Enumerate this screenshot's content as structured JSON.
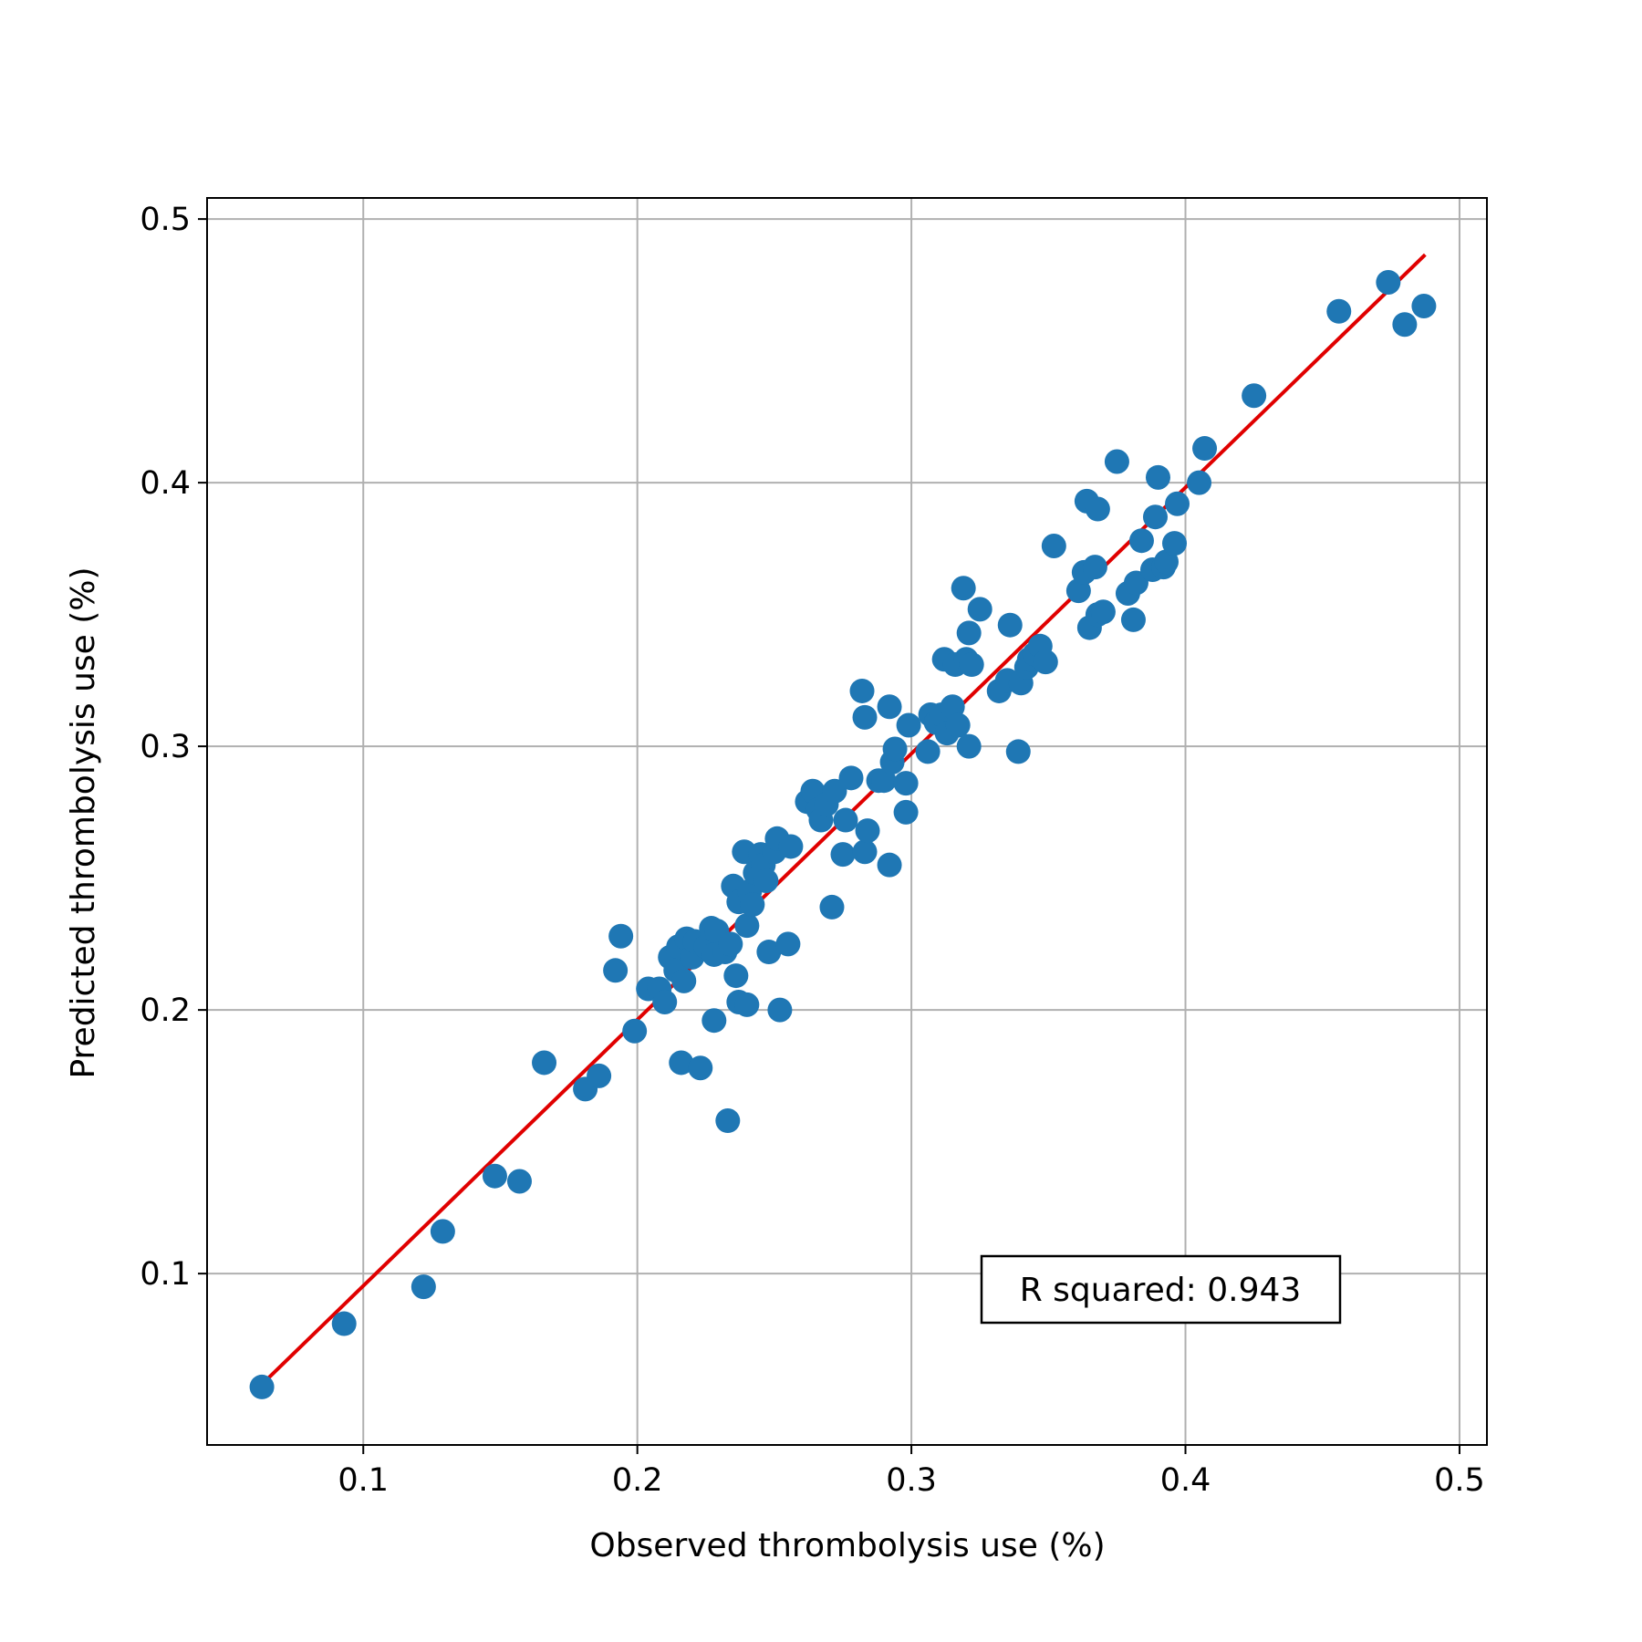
{
  "colors": {
    "points": "#1f77b4",
    "fit_line": "#e00000",
    "grid": "#b0b0b0",
    "axes": "#000000"
  },
  "chart_data": {
    "type": "scatter",
    "title": "",
    "xlabel": "Observed thrombolysis use (%)",
    "ylabel": "Predicted thrombolysis use (%)",
    "xlim": [
      0.043,
      0.51
    ],
    "ylim": [
      0.035,
      0.508
    ],
    "xticks": [
      0.1,
      0.2,
      0.3,
      0.4,
      0.5
    ],
    "yticks": [
      0.1,
      0.2,
      0.3,
      0.4,
      0.5
    ],
    "xtick_labels": [
      "0.1",
      "0.2",
      "0.3",
      "0.4",
      "0.5"
    ],
    "ytick_labels": [
      "0.1",
      "0.2",
      "0.3",
      "0.4",
      "0.5"
    ],
    "grid": true,
    "annotation": "R squared: 0.943",
    "fit_line": {
      "x": [
        0.063,
        0.487
      ],
      "y": [
        0.058,
        0.486
      ]
    },
    "points": [
      [
        0.063,
        0.057
      ],
      [
        0.093,
        0.081
      ],
      [
        0.122,
        0.095
      ],
      [
        0.129,
        0.116
      ],
      [
        0.148,
        0.137
      ],
      [
        0.157,
        0.135
      ],
      [
        0.166,
        0.18
      ],
      [
        0.181,
        0.17
      ],
      [
        0.186,
        0.175
      ],
      [
        0.192,
        0.215
      ],
      [
        0.194,
        0.228
      ],
      [
        0.199,
        0.192
      ],
      [
        0.204,
        0.208
      ],
      [
        0.208,
        0.208
      ],
      [
        0.21,
        0.203
      ],
      [
        0.212,
        0.22
      ],
      [
        0.214,
        0.215
      ],
      [
        0.215,
        0.224
      ],
      [
        0.216,
        0.18
      ],
      [
        0.217,
        0.211
      ],
      [
        0.218,
        0.227
      ],
      [
        0.22,
        0.22
      ],
      [
        0.221,
        0.226
      ],
      [
        0.223,
        0.178
      ],
      [
        0.225,
        0.224
      ],
      [
        0.227,
        0.231
      ],
      [
        0.228,
        0.221
      ],
      [
        0.228,
        0.196
      ],
      [
        0.229,
        0.23
      ],
      [
        0.232,
        0.222
      ],
      [
        0.233,
        0.158
      ],
      [
        0.234,
        0.225
      ],
      [
        0.235,
        0.247
      ],
      [
        0.236,
        0.213
      ],
      [
        0.237,
        0.203
      ],
      [
        0.237,
        0.241
      ],
      [
        0.239,
        0.26
      ],
      [
        0.24,
        0.202
      ],
      [
        0.24,
        0.232
      ],
      [
        0.241,
        0.245
      ],
      [
        0.242,
        0.24
      ],
      [
        0.243,
        0.252
      ],
      [
        0.245,
        0.259
      ],
      [
        0.246,
        0.255
      ],
      [
        0.247,
        0.249
      ],
      [
        0.248,
        0.222
      ],
      [
        0.25,
        0.26
      ],
      [
        0.251,
        0.265
      ],
      [
        0.252,
        0.2
      ],
      [
        0.255,
        0.225
      ],
      [
        0.256,
        0.262
      ],
      [
        0.262,
        0.279
      ],
      [
        0.264,
        0.283
      ],
      [
        0.266,
        0.276
      ],
      [
        0.267,
        0.272
      ],
      [
        0.269,
        0.278
      ],
      [
        0.271,
        0.239
      ],
      [
        0.272,
        0.283
      ],
      [
        0.275,
        0.259
      ],
      [
        0.276,
        0.272
      ],
      [
        0.278,
        0.288
      ],
      [
        0.282,
        0.321
      ],
      [
        0.283,
        0.26
      ],
      [
        0.283,
        0.311
      ],
      [
        0.284,
        0.268
      ],
      [
        0.288,
        0.287
      ],
      [
        0.29,
        0.287
      ],
      [
        0.292,
        0.255
      ],
      [
        0.292,
        0.315
      ],
      [
        0.293,
        0.294
      ],
      [
        0.294,
        0.299
      ],
      [
        0.298,
        0.286
      ],
      [
        0.298,
        0.275
      ],
      [
        0.299,
        0.308
      ],
      [
        0.306,
        0.298
      ],
      [
        0.307,
        0.312
      ],
      [
        0.309,
        0.309
      ],
      [
        0.311,
        0.312
      ],
      [
        0.312,
        0.333
      ],
      [
        0.313,
        0.305
      ],
      [
        0.315,
        0.315
      ],
      [
        0.316,
        0.331
      ],
      [
        0.317,
        0.308
      ],
      [
        0.319,
        0.36
      ],
      [
        0.32,
        0.333
      ],
      [
        0.321,
        0.3
      ],
      [
        0.321,
        0.343
      ],
      [
        0.322,
        0.331
      ],
      [
        0.325,
        0.352
      ],
      [
        0.332,
        0.321
      ],
      [
        0.335,
        0.325
      ],
      [
        0.336,
        0.346
      ],
      [
        0.339,
        0.298
      ],
      [
        0.34,
        0.324
      ],
      [
        0.342,
        0.33
      ],
      [
        0.343,
        0.333
      ],
      [
        0.345,
        0.335
      ],
      [
        0.347,
        0.338
      ],
      [
        0.349,
        0.332
      ],
      [
        0.352,
        0.376
      ],
      [
        0.361,
        0.359
      ],
      [
        0.363,
        0.366
      ],
      [
        0.364,
        0.393
      ],
      [
        0.365,
        0.345
      ],
      [
        0.367,
        0.368
      ],
      [
        0.368,
        0.39
      ],
      [
        0.368,
        0.35
      ],
      [
        0.37,
        0.351
      ],
      [
        0.375,
        0.408
      ],
      [
        0.379,
        0.358
      ],
      [
        0.381,
        0.348
      ],
      [
        0.382,
        0.362
      ],
      [
        0.384,
        0.378
      ],
      [
        0.388,
        0.367
      ],
      [
        0.389,
        0.387
      ],
      [
        0.39,
        0.402
      ],
      [
        0.392,
        0.368
      ],
      [
        0.393,
        0.37
      ],
      [
        0.396,
        0.377
      ],
      [
        0.397,
        0.392
      ],
      [
        0.405,
        0.4
      ],
      [
        0.407,
        0.413
      ],
      [
        0.425,
        0.433
      ],
      [
        0.456,
        0.465
      ],
      [
        0.474,
        0.476
      ],
      [
        0.48,
        0.46
      ],
      [
        0.487,
        0.467
      ]
    ]
  }
}
